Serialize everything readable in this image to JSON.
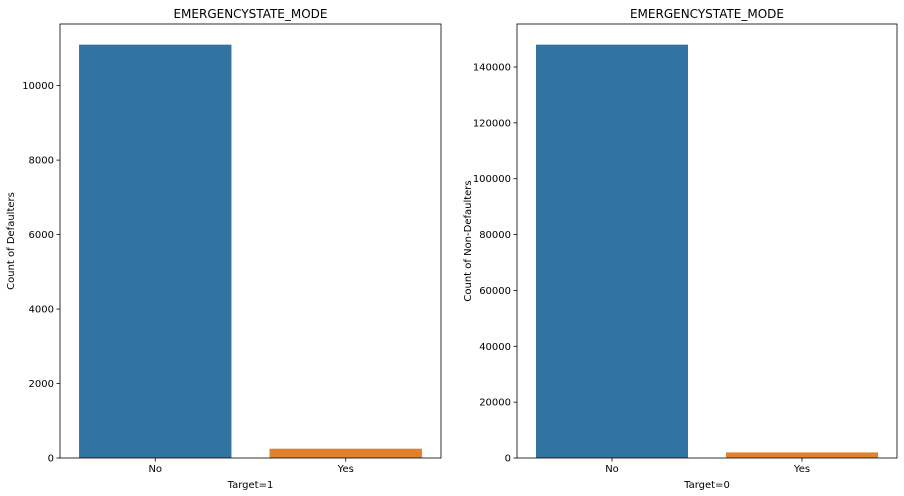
{
  "chart_data": [
    {
      "type": "bar",
      "title": "EMERGENCYSTATE_MODE",
      "xlabel": "Target=1",
      "ylabel": "Count of Defaulters",
      "categories": [
        "No",
        "Yes"
      ],
      "values": [
        11100,
        250
      ],
      "colors": [
        "#3274a1",
        "#e1812c"
      ],
      "ylim": [
        0,
        11655
      ],
      "yticks": [
        0,
        2000,
        4000,
        6000,
        8000,
        10000
      ],
      "grid": false
    },
    {
      "type": "bar",
      "title": "EMERGENCYSTATE_MODE",
      "xlabel": "Target=0",
      "ylabel": "Count of Non-Defaulters",
      "categories": [
        "No",
        "Yes"
      ],
      "values": [
        148000,
        2000
      ],
      "colors": [
        "#3274a1",
        "#e1812c"
      ],
      "ylim": [
        0,
        155400
      ],
      "yticks": [
        0,
        20000,
        40000,
        60000,
        80000,
        100000,
        120000,
        140000
      ],
      "grid": false
    }
  ]
}
